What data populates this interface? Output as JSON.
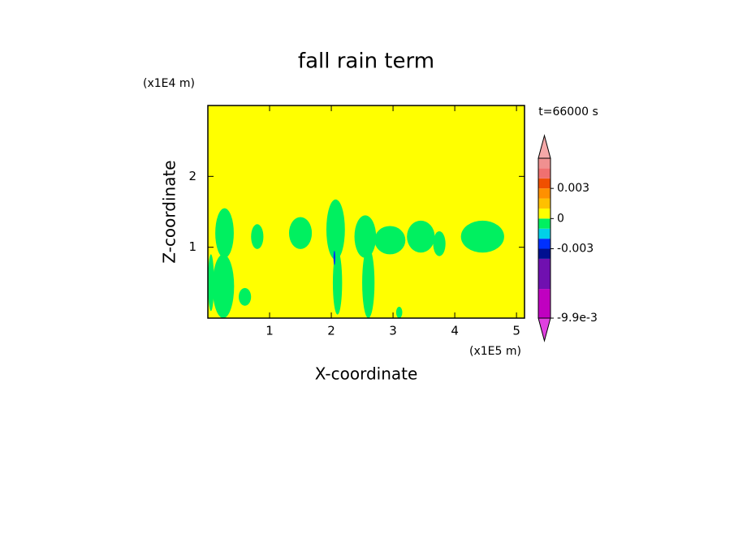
{
  "chart_data": {
    "type": "contour",
    "title": "fall rain term",
    "x_label": "X-coordinate",
    "y_label": "Z-coordinate",
    "x_unit": "(x1E5 m)",
    "y_unit": "(x1E4 m)",
    "time_label": "t=66000 s",
    "xlim": [
      0,
      5.13
    ],
    "ylim": [
      0,
      3
    ],
    "xticks": [
      1,
      2,
      3,
      4,
      5
    ],
    "yticks": [
      1,
      2
    ],
    "background_value": 0.0005,
    "levels": [
      -0.0099,
      -0.007,
      -0.004,
      -0.003,
      -0.002,
      -0.001,
      0,
      0.001,
      0.002,
      0.003,
      0.004,
      0.005,
      0.006
    ],
    "colors": [
      "#e040e0",
      "#c000c0",
      "#7010b0",
      "#001090",
      "#0030ff",
      "#00d0e8",
      "#00f060",
      "#ffff00",
      "#ffc000",
      "#ff9000",
      "#f05000",
      "#f07070",
      "#f09090",
      "#f4a8a8"
    ],
    "colorbar_ticks": [
      0.003,
      0,
      -0.003,
      {
        "value": -0.0099,
        "label": "-9.9e-3"
      }
    ],
    "regions": {
      "x": [
        0.27,
        0.8,
        1.5,
        2.07,
        2.55,
        2.95,
        3.45,
        3.75,
        4.45,
        0.25,
        0.6,
        2.1,
        2.6,
        3.1,
        0.05,
        2.05
      ],
      "z": [
        1.2,
        1.15,
        1.2,
        1.25,
        1.15,
        1.1,
        1.15,
        1.05,
        1.15,
        0.45,
        0.3,
        0.5,
        0.5,
        0.08,
        0.5,
        0.85
      ],
      "width": [
        0.3,
        0.2,
        0.37,
        0.3,
        0.35,
        0.5,
        0.45,
        0.2,
        0.7,
        0.35,
        0.2,
        0.15,
        0.2,
        0.1,
        0.1,
        0.03
      ],
      "height": [
        0.7,
        0.35,
        0.45,
        0.85,
        0.6,
        0.4,
        0.45,
        0.35,
        0.45,
        0.9,
        0.25,
        0.9,
        1.0,
        0.16,
        0.8,
        0.2
      ],
      "values": [
        -0.0005,
        -0.0005,
        -0.0005,
        -0.0005,
        -0.0005,
        -0.0005,
        -0.0005,
        -0.0005,
        -0.0005,
        -0.0005,
        -0.0005,
        -0.0005,
        -0.0005,
        -0.0005,
        -0.0005,
        -0.0025
      ]
    }
  }
}
